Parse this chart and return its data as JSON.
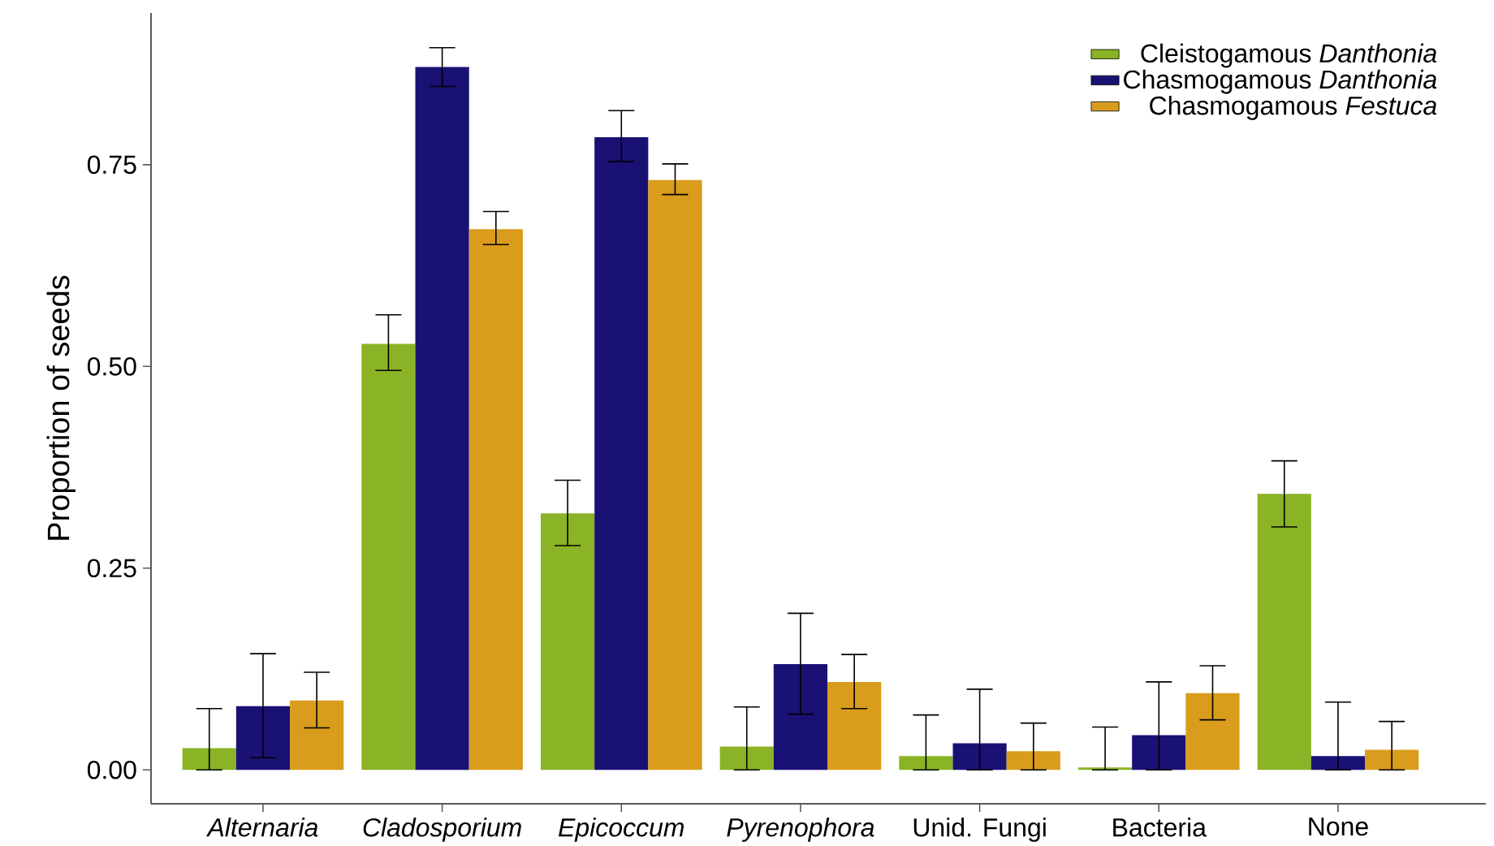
{
  "chart_data": {
    "type": "bar",
    "ylabel": "Proportion of seeds",
    "categories": [
      "*Alternaria*",
      "*Cladosporium*",
      "*Epicoccum*",
      "*Pyrenophora*",
      "Unid. Fungi",
      "Bacteria",
      "None"
    ],
    "series": [
      {
        "name": "Cleistogamous *Danthonia*",
        "color": "#8ab325",
        "values": [
          0.027,
          0.528,
          0.318,
          0.029,
          0.017,
          0.003,
          0.342
        ],
        "errors": [
          [
            0,
            0.076
          ],
          [
            0.495,
            0.564
          ],
          [
            0.278,
            0.359
          ],
          [
            0,
            0.078
          ],
          [
            0,
            0.068
          ],
          [
            0,
            0.053
          ],
          [
            0.301,
            0.383
          ]
        ]
      },
      {
        "name": "Chasmogamous *Danthonia*",
        "color": "#1a1175",
        "values": [
          0.079,
          0.871,
          0.784,
          0.131,
          0.033,
          0.043,
          0.017
        ],
        "errors": [
          [
            0.015,
            0.144
          ],
          [
            0.847,
            0.895
          ],
          [
            0.754,
            0.817
          ],
          [
            0.069,
            0.194
          ],
          [
            0,
            0.1
          ],
          [
            0,
            0.109
          ],
          [
            0,
            0.084
          ]
        ]
      },
      {
        "name": "Chasmogamous *Festuca*",
        "color": "#d99c1c",
        "values": [
          0.086,
          0.67,
          0.731,
          0.109,
          0.023,
          0.095,
          0.025
        ],
        "errors": [
          [
            0.052,
            0.121
          ],
          [
            0.651,
            0.692
          ],
          [
            0.713,
            0.751
          ],
          [
            0.076,
            0.143
          ],
          [
            0,
            0.058
          ],
          [
            0.062,
            0.129
          ],
          [
            0,
            0.06
          ]
        ]
      }
    ],
    "ylim": [
      -0.042,
      0.938
    ],
    "yticks": [
      {
        "value": 0,
        "label": "0.00"
      },
      {
        "value": 0.25,
        "label": "0.25"
      },
      {
        "value": 0.5,
        "label": "0.50"
      },
      {
        "value": 0.75,
        "label": "0.75"
      }
    ],
    "grid": false,
    "legend": "top right"
  }
}
